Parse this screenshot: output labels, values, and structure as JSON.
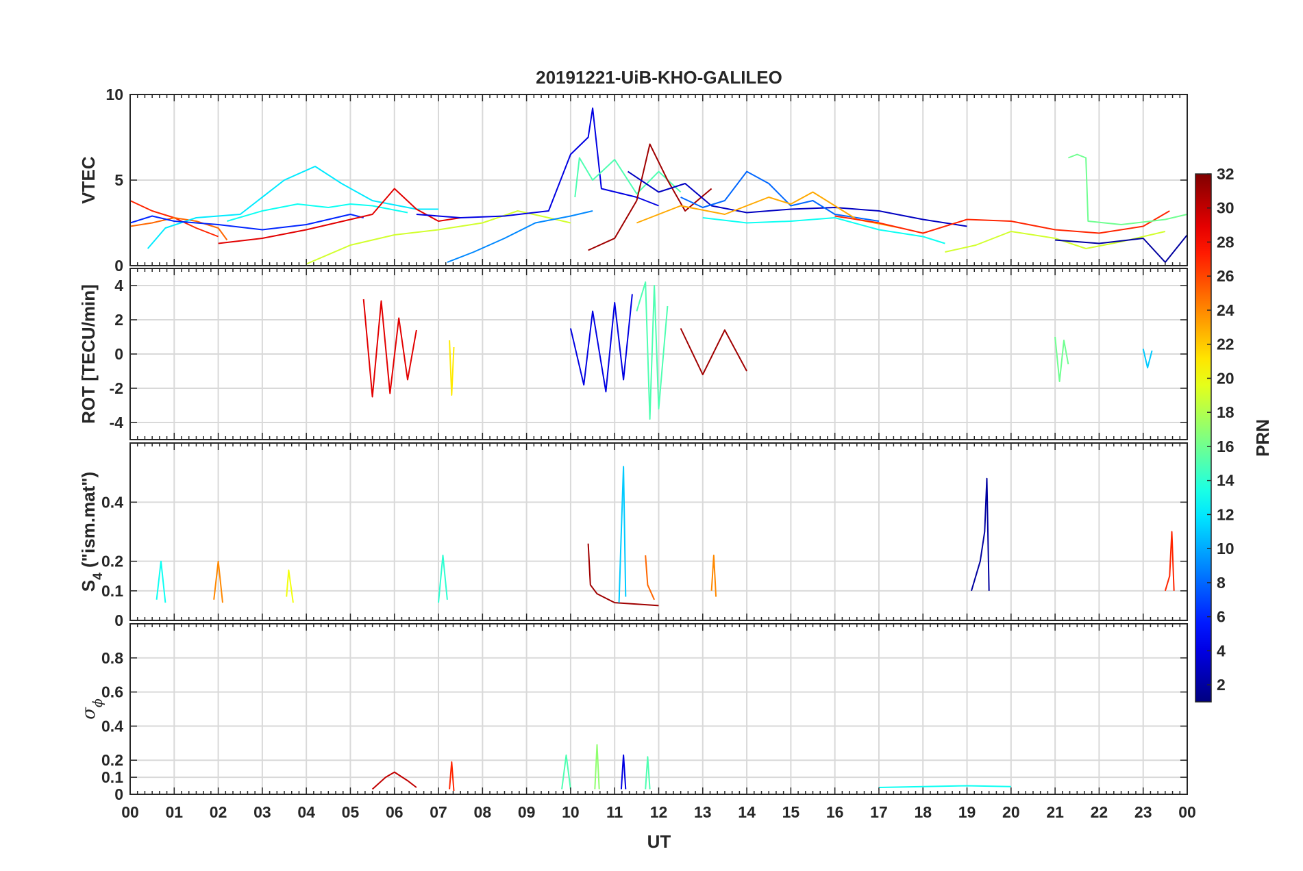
{
  "title": "20191221-UiB-KHO-GALILEO",
  "xlabel": "UT",
  "x_tick_labels": [
    "00",
    "01",
    "02",
    "03",
    "04",
    "05",
    "06",
    "07",
    "08",
    "09",
    "10",
    "11",
    "12",
    "13",
    "14",
    "15",
    "16",
    "17",
    "18",
    "19",
    "20",
    "21",
    "22",
    "23",
    "00"
  ],
  "colorbar": {
    "label": "PRN",
    "range": [
      1,
      32
    ],
    "tick_labels": [
      "2",
      "4",
      "6",
      "8",
      "10",
      "12",
      "14",
      "16",
      "18",
      "20",
      "22",
      "24",
      "26",
      "28",
      "30",
      "32"
    ],
    "colormap": "jet"
  },
  "chart_data": [
    {
      "type": "line",
      "panel": "VTEC",
      "ylabel": "VTEC",
      "ylim": [
        0,
        10
      ],
      "yticks": [
        0,
        5,
        10
      ],
      "ytick_labels": [
        "0",
        "5",
        "10"
      ],
      "grid": true,
      "series": [
        {
          "prn": 27,
          "x": [
            0,
            0.5,
            1.0,
            1.5,
            2.0
          ],
          "y": [
            3.8,
            3.2,
            2.8,
            2.2,
            1.7
          ]
        },
        {
          "prn": 25,
          "x": [
            0,
            0.5,
            1.0,
            1.5,
            2.0,
            2.2
          ],
          "y": [
            2.3,
            2.5,
            2.8,
            2.6,
            2.2,
            1.5
          ]
        },
        {
          "prn": 12,
          "x": [
            0.4,
            0.8,
            1.5,
            2.5,
            3.5,
            4.2,
            4.8,
            5.5,
            6.5,
            7.0
          ],
          "y": [
            1.0,
            2.2,
            2.8,
            3.0,
            5.0,
            5.8,
            4.8,
            3.8,
            3.3,
            3.3
          ]
        },
        {
          "prn": 6,
          "x": [
            0,
            0.5,
            1.0,
            2.0,
            3.0,
            4.0,
            5.0,
            5.3
          ],
          "y": [
            2.5,
            2.9,
            2.6,
            2.4,
            2.1,
            2.4,
            3.0,
            2.8
          ]
        },
        {
          "prn": 13,
          "x": [
            2.2,
            3.0,
            3.8,
            4.5,
            5.0,
            5.5,
            6.3
          ],
          "y": [
            2.6,
            3.2,
            3.6,
            3.4,
            3.6,
            3.5,
            3.1
          ]
        },
        {
          "prn": 29,
          "x": [
            2.0,
            3.0,
            4.0,
            5.0,
            5.5,
            6.0,
            6.5,
            7.0,
            7.5
          ],
          "y": [
            1.3,
            1.6,
            2.1,
            2.7,
            3.0,
            4.5,
            3.3,
            2.6,
            2.8
          ]
        },
        {
          "prn": 19,
          "x": [
            4.0,
            5.0,
            6.0,
            7.0,
            8.0,
            8.8,
            9.5,
            10.0
          ],
          "y": [
            0.1,
            1.2,
            1.8,
            2.1,
            2.5,
            3.2,
            2.8,
            2.5
          ]
        },
        {
          "prn": 9,
          "x": [
            7.2,
            7.8,
            8.5,
            9.2,
            10.0,
            10.5
          ],
          "y": [
            0.2,
            0.8,
            1.6,
            2.5,
            2.9,
            3.2
          ]
        },
        {
          "prn": 4,
          "x": [
            6.5,
            7.5,
            8.5,
            9.5,
            10.0,
            10.4,
            10.5,
            10.7,
            11.5,
            12.0
          ],
          "y": [
            3.0,
            2.8,
            2.9,
            3.2,
            6.5,
            7.5,
            9.2,
            4.5,
            4.0,
            3.5
          ]
        },
        {
          "prn": 15,
          "x": [
            10.1,
            10.2,
            10.5,
            11.0,
            11.5,
            12.0,
            12.5
          ],
          "y": [
            4.0,
            6.3,
            5.0,
            6.2,
            4.2,
            5.5,
            4.3
          ]
        },
        {
          "prn": 31,
          "x": [
            10.4,
            11.0,
            11.5,
            11.8,
            12.2,
            12.6,
            13.2
          ],
          "y": [
            0.9,
            1.6,
            3.8,
            7.1,
            5.0,
            3.2,
            4.5
          ]
        },
        {
          "prn": 3,
          "x": [
            11.3,
            12.0,
            12.6,
            13.2,
            14.0,
            15.0,
            16.0,
            17.0,
            18.0,
            19.0
          ],
          "y": [
            5.5,
            4.3,
            4.8,
            3.5,
            3.1,
            3.3,
            3.4,
            3.2,
            2.7,
            2.3
          ]
        },
        {
          "prn": 8,
          "x": [
            12.5,
            13.0,
            13.5,
            14.0,
            14.5,
            15.0,
            15.5,
            16.0,
            17.0
          ],
          "y": [
            4.0,
            3.4,
            3.8,
            5.5,
            4.8,
            3.5,
            3.8,
            3.0,
            2.6
          ]
        },
        {
          "prn": 23,
          "x": [
            11.5,
            12.5,
            13.5,
            14.5,
            15.0,
            15.5,
            16.5,
            17.5
          ],
          "y": [
            2.5,
            3.5,
            3.0,
            4.0,
            3.6,
            4.3,
            2.7,
            2.2
          ]
        },
        {
          "prn": 13,
          "x": [
            13.0,
            14.0,
            15.0,
            16.0,
            17.0,
            18.0,
            18.5
          ],
          "y": [
            2.8,
            2.5,
            2.6,
            2.8,
            2.1,
            1.7,
            1.3
          ]
        },
        {
          "prn": 27,
          "x": [
            16.0,
            17.0,
            18.0,
            19.0,
            20.0,
            21.0,
            22.0,
            23.0,
            23.6
          ],
          "y": [
            2.9,
            2.5,
            1.9,
            2.7,
            2.6,
            2.1,
            1.9,
            2.3,
            3.2
          ]
        },
        {
          "prn": 19,
          "x": [
            18.5,
            19.2,
            20.0,
            21.0,
            21.7,
            22.5,
            23.5
          ],
          "y": [
            0.8,
            1.2,
            2.0,
            1.6,
            1.0,
            1.4,
            2.0
          ]
        },
        {
          "prn": 16,
          "x": [
            21.3,
            21.5,
            21.7,
            21.75,
            22.5,
            23.5,
            24.0
          ],
          "y": [
            6.3,
            6.5,
            6.3,
            2.6,
            2.4,
            2.7,
            3.0
          ]
        },
        {
          "prn": 2,
          "x": [
            21.0,
            22.0,
            23.0,
            23.5,
            24.0
          ],
          "y": [
            1.5,
            1.3,
            1.6,
            0.2,
            1.8
          ]
        }
      ]
    },
    {
      "type": "line",
      "panel": "ROT",
      "ylabel": "ROT [TECU/min]",
      "ylim": [
        -5,
        5
      ],
      "yticks": [
        -4,
        -2,
        0,
        2,
        4
      ],
      "ytick_labels": [
        "-4",
        "-2",
        "0",
        "2",
        "4"
      ],
      "grid": true,
      "series": [
        {
          "prn": 29,
          "x": [
            5.3,
            5.5,
            5.7,
            5.9,
            6.1,
            6.3,
            6.5
          ],
          "y": [
            3.2,
            -2.5,
            3.1,
            -2.3,
            2.1,
            -1.5,
            1.4
          ]
        },
        {
          "prn": 21,
          "x": [
            7.25,
            7.3,
            7.35
          ],
          "y": [
            0.8,
            -2.4,
            0.4
          ]
        },
        {
          "prn": 4,
          "x": [
            10.0,
            10.3,
            10.5,
            10.8,
            11.0,
            11.2,
            11.4
          ],
          "y": [
            1.5,
            -1.8,
            2.5,
            -2.2,
            3.0,
            -1.5,
            3.5
          ]
        },
        {
          "prn": 15,
          "x": [
            11.5,
            11.7,
            11.8,
            11.9,
            12.0,
            12.2
          ],
          "y": [
            2.5,
            4.2,
            -3.8,
            4.0,
            -3.2,
            2.8
          ]
        },
        {
          "prn": 31,
          "x": [
            12.5,
            13.0,
            13.5,
            14.0
          ],
          "y": [
            1.5,
            -1.2,
            1.4,
            -1.0
          ]
        },
        {
          "prn": 16,
          "x": [
            21.0,
            21.1,
            21.2,
            21.3
          ],
          "y": [
            1.0,
            -1.6,
            0.8,
            -0.6
          ]
        },
        {
          "prn": 11,
          "x": [
            23.0,
            23.1,
            23.2
          ],
          "y": [
            0.3,
            -0.8,
            0.2
          ]
        }
      ]
    },
    {
      "type": "line",
      "panel": "S4",
      "ylabel": "S4 (\"ism.mat\")",
      "ylabel_main": "S",
      "ylabel_sub": "4",
      "ylabel_rest": " (\"ism.mat\")",
      "ylim": [
        0,
        0.6
      ],
      "yticks": [
        0,
        0.1,
        0.2,
        0.4
      ],
      "ytick_labels": [
        "0",
        "0.1",
        "0.2",
        "0.4"
      ],
      "grid": true,
      "series": [
        {
          "prn": 13,
          "x": [
            0.6,
            0.7,
            0.8
          ],
          "y": [
            0.07,
            0.2,
            0.06
          ]
        },
        {
          "prn": 24,
          "x": [
            1.9,
            2.0,
            2.1
          ],
          "y": [
            0.07,
            0.2,
            0.06
          ]
        },
        {
          "prn": 20,
          "x": [
            3.55,
            3.6,
            3.7
          ],
          "y": [
            0.08,
            0.17,
            0.06
          ]
        },
        {
          "prn": 14,
          "x": [
            7.0,
            7.1,
            7.2
          ],
          "y": [
            0.06,
            0.22,
            0.07
          ]
        },
        {
          "prn": 31,
          "x": [
            10.4,
            10.45,
            10.6,
            11.0,
            12.0
          ],
          "y": [
            0.26,
            0.12,
            0.09,
            0.06,
            0.05
          ]
        },
        {
          "prn": 11,
          "x": [
            11.1,
            11.15,
            11.2,
            11.25
          ],
          "y": [
            0.06,
            0.3,
            0.52,
            0.08
          ]
        },
        {
          "prn": 25,
          "x": [
            11.7,
            11.75,
            11.9
          ],
          "y": [
            0.22,
            0.12,
            0.07
          ]
        },
        {
          "prn": 24,
          "x": [
            13.2,
            13.25,
            13.3
          ],
          "y": [
            0.1,
            0.22,
            0.08
          ]
        },
        {
          "prn": 2,
          "x": [
            19.1,
            19.3,
            19.4,
            19.45,
            19.5
          ],
          "y": [
            0.1,
            0.2,
            0.3,
            0.48,
            0.1
          ]
        },
        {
          "prn": 27,
          "x": [
            23.5,
            23.6,
            23.65,
            23.7
          ],
          "y": [
            0.1,
            0.15,
            0.3,
            0.1
          ]
        }
      ]
    },
    {
      "type": "line",
      "panel": "sigma_phi",
      "ylabel": "σ ϕ",
      "ylabel_main": "σ",
      "ylabel_sub": "ϕ",
      "ylim": [
        0,
        1
      ],
      "yticks": [
        0,
        0.1,
        0.2,
        0.4,
        0.6,
        0.8
      ],
      "ytick_labels": [
        "0",
        "0.1",
        "0.2",
        "0.4",
        "0.6",
        "0.8"
      ],
      "grid": true,
      "series": [
        {
          "prn": 30,
          "x": [
            5.5,
            5.8,
            6.0,
            6.3,
            6.5
          ],
          "y": [
            0.03,
            0.1,
            0.13,
            0.08,
            0.04
          ]
        },
        {
          "prn": 27,
          "x": [
            7.25,
            7.3,
            7.35
          ],
          "y": [
            0.03,
            0.19,
            0.02
          ]
        },
        {
          "prn": 15,
          "x": [
            9.8,
            9.9,
            10.0
          ],
          "y": [
            0.03,
            0.23,
            0.03
          ]
        },
        {
          "prn": 17,
          "x": [
            10.55,
            10.6,
            10.65
          ],
          "y": [
            0.03,
            0.29,
            0.03
          ]
        },
        {
          "prn": 4,
          "x": [
            11.15,
            11.2,
            11.25
          ],
          "y": [
            0.03,
            0.23,
            0.03
          ]
        },
        {
          "prn": 15,
          "x": [
            11.7,
            11.75,
            11.8
          ],
          "y": [
            0.03,
            0.22,
            0.03
          ]
        },
        {
          "prn": 13,
          "x": [
            17.0,
            18.0,
            19.0,
            20.0
          ],
          "y": [
            0.04,
            0.045,
            0.05,
            0.045
          ]
        }
      ]
    }
  ]
}
